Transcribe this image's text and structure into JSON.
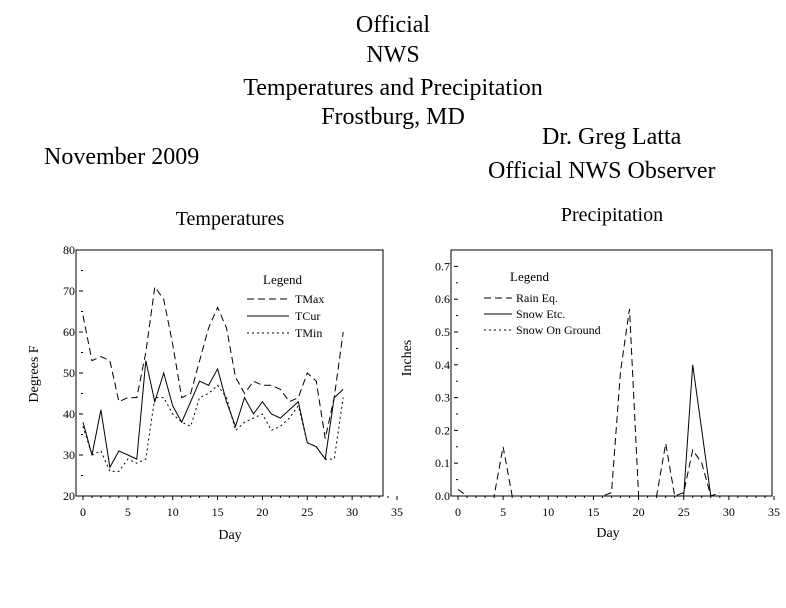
{
  "page": {
    "title_lines": [
      "Official",
      "NWS",
      "Temperatures and Precipitation",
      "Frostburg, MD"
    ],
    "month": "November 2009",
    "observer_name": "Dr. Greg Latta",
    "observer_title": "Official NWS Observer"
  },
  "chart_data": [
    {
      "type": "line",
      "title": "Temperatures",
      "xlabel": "Day",
      "ylabel": "Degrees F",
      "xlim": [
        0,
        35
      ],
      "ylim": [
        20,
        80
      ],
      "xticks": [
        0,
        5,
        10,
        15,
        20,
        25,
        30,
        35
      ],
      "yticks": [
        20,
        30,
        40,
        50,
        60,
        70,
        80
      ],
      "legend": {
        "title": "Legend",
        "placement": "top-right"
      },
      "x": [
        0,
        1,
        2,
        3,
        4,
        5,
        6,
        7,
        8,
        9,
        10,
        11,
        12,
        13,
        14,
        15,
        16,
        17,
        18,
        19,
        20,
        21,
        22,
        23,
        24,
        25,
        26,
        27,
        28,
        29
      ],
      "series": [
        {
          "name": "TMax",
          "style": "dashed",
          "values": [
            64,
            53,
            54,
            53,
            43,
            44,
            44,
            55,
            71,
            68,
            57,
            44,
            45,
            53,
            61,
            66,
            61,
            49,
            45,
            48,
            47,
            47,
            46,
            43,
            44,
            50,
            48,
            34,
            44,
            60
          ]
        },
        {
          "name": "TCur",
          "style": "solid",
          "values": [
            38,
            30,
            41,
            27,
            31,
            30,
            29,
            53,
            43,
            50,
            42,
            38,
            43,
            48,
            47,
            51,
            43,
            37,
            44,
            40,
            43,
            40,
            39,
            41,
            43,
            33,
            32,
            29,
            44,
            46
          ]
        },
        {
          "name": "TMin",
          "style": "dotted",
          "values": [
            37,
            30,
            31,
            26,
            26,
            29,
            28,
            29,
            44,
            44,
            40,
            38,
            37,
            44,
            45,
            47,
            44,
            36,
            38,
            39,
            40,
            36,
            37,
            39,
            42,
            33,
            32,
            29,
            29,
            44
          ]
        }
      ]
    },
    {
      "type": "line",
      "title": "Precipitation",
      "xlabel": "Day",
      "ylabel": "Inches",
      "xlim": [
        0,
        35
      ],
      "ylim": [
        0,
        0.75
      ],
      "xticks": [
        0,
        5,
        10,
        15,
        20,
        25,
        30,
        35
      ],
      "yticks": [
        0.0,
        0.1,
        0.2,
        0.3,
        0.4,
        0.5,
        0.6,
        0.7
      ],
      "ytick_labels": [
        "0.0",
        "0.1",
        "0.2",
        "0.3",
        "0.4",
        "0.5",
        "0.6",
        "0.7"
      ],
      "legend": {
        "title": "Legend",
        "placement": "top-left"
      },
      "x": [
        0,
        1,
        2,
        3,
        4,
        5,
        6,
        7,
        8,
        9,
        10,
        11,
        12,
        13,
        14,
        15,
        16,
        17,
        18,
        19,
        20,
        21,
        22,
        23,
        24,
        25,
        26,
        27,
        28,
        29
      ],
      "series": [
        {
          "name": "Rain Eq.",
          "style": "dashed",
          "values": [
            0.02,
            0,
            0,
            0,
            0,
            0.15,
            0,
            0,
            0,
            0,
            0,
            0,
            0,
            0,
            0,
            0,
            0,
            0.01,
            0.38,
            0.57,
            0,
            0,
            0,
            0.16,
            0,
            0.01,
            0.14,
            0.1,
            0,
            0.01
          ]
        },
        {
          "name": "Snow Etc.",
          "style": "solid",
          "values": [
            0,
            0,
            0,
            0,
            0,
            0,
            0,
            0,
            0,
            0,
            0,
            0,
            0,
            0,
            0,
            0,
            0,
            0,
            0,
            0,
            0,
            0,
            0,
            0,
            0,
            0,
            0.4,
            0.2,
            0,
            0
          ]
        },
        {
          "name": "Snow On Ground",
          "style": "dotted",
          "values": [
            0,
            0,
            0,
            0,
            0,
            0,
            0,
            0,
            0,
            0,
            0,
            0,
            0,
            0,
            0,
            0,
            0,
            0,
            0,
            0,
            0,
            0,
            0,
            0,
            0,
            0,
            0,
            0,
            0,
            0
          ]
        }
      ]
    }
  ]
}
